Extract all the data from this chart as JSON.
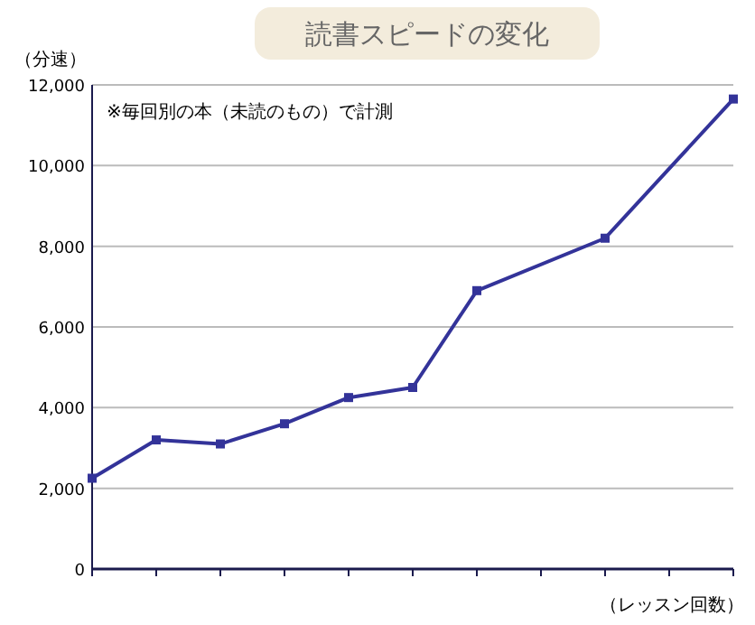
{
  "chart_data": {
    "type": "line",
    "title": "読書スピードの変化",
    "ylabel": "（分速）",
    "xlabel": "（レッスン回数）",
    "annotations": [
      "※毎回別の本（未読のもの）で計測"
    ],
    "categories": [
      null,
      null,
      null,
      null,
      null,
      null,
      null,
      null,
      null,
      null,
      null
    ],
    "series": [
      {
        "color": "#333399",
        "values": [
          2250,
          3200,
          3100,
          3600,
          4250,
          4500,
          6900,
          null,
          8200,
          null,
          11650
        ]
      }
    ],
    "ylim": [
      0,
      12000
    ],
    "yticks": [
      {
        "value": 0,
        "label": "0"
      },
      {
        "value": 2000,
        "label": "2,000"
      },
      {
        "value": 4000,
        "label": "4,000"
      },
      {
        "value": 6000,
        "label": "6,000"
      },
      {
        "value": 8000,
        "label": "8,000"
      },
      {
        "value": 10000,
        "label": "10,000"
      },
      {
        "value": 12000,
        "label": "12,000"
      }
    ],
    "grid": "y",
    "marker": "square",
    "line_style": "solid"
  }
}
